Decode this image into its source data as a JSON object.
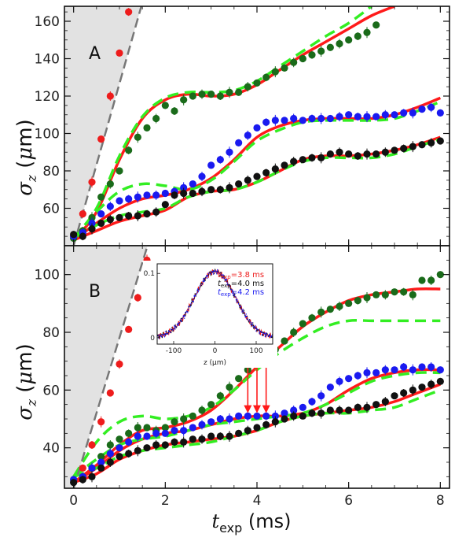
{
  "chart_data": [
    {
      "panel": "A",
      "type": "scatter",
      "ylabel": "σz (μm)",
      "xlim": [
        -0.2,
        8.2
      ],
      "ylim": [
        40,
        168
      ],
      "yticks": [
        60,
        80,
        100,
        120,
        140,
        160
      ],
      "series": [
        {
          "color": "#ee1c1c",
          "x": [
            0.0,
            0.2,
            0.4,
            0.6,
            0.8,
            1.0,
            1.2
          ],
          "y": [
            45,
            57,
            74,
            97,
            120,
            143,
            165
          ]
        },
        {
          "color": "#1a6b1a",
          "x": [
            0.0,
            0.2,
            0.4,
            0.6,
            0.8,
            1.0,
            1.2,
            1.4,
            1.6,
            1.8,
            2.0,
            2.2,
            2.4,
            2.6,
            2.8,
            3.0,
            3.2,
            3.4,
            3.6,
            3.8,
            4.0,
            4.2,
            4.4,
            4.6,
            4.8,
            5.0,
            5.2,
            5.4,
            5.6,
            5.8,
            6.0,
            6.2,
            6.4,
            6.6
          ],
          "y": [
            44,
            48,
            55,
            66,
            73,
            80,
            91,
            98,
            103,
            108,
            115,
            112,
            118,
            120,
            121,
            121,
            120,
            122,
            122,
            125,
            127,
            130,
            133,
            135,
            138,
            140,
            142,
            144,
            146,
            148,
            150,
            152,
            154,
            158
          ]
        },
        {
          "color": "#1a1af0",
          "x": [
            0.0,
            0.2,
            0.4,
            0.6,
            0.8,
            1.0,
            1.2,
            1.4,
            1.6,
            1.8,
            2.0,
            2.2,
            2.4,
            2.6,
            2.8,
            3.0,
            3.2,
            3.4,
            3.6,
            3.8,
            4.0,
            4.2,
            4.4,
            4.6,
            4.8,
            5.0,
            5.2,
            5.4,
            5.6,
            5.8,
            6.0,
            6.2,
            6.4,
            6.6,
            6.8,
            7.0,
            7.2,
            7.4,
            7.6,
            7.8,
            8.0
          ],
          "y": [
            45,
            47,
            52,
            57,
            61,
            64,
            65,
            66,
            67,
            67,
            68,
            69,
            71,
            73,
            77,
            83,
            86,
            90,
            95,
            99,
            103,
            106,
            107,
            107,
            108,
            107,
            108,
            108,
            108,
            109,
            110,
            109,
            109,
            109,
            110,
            110,
            111,
            111,
            113,
            114,
            111
          ]
        },
        {
          "color": "#111111",
          "x": [
            0.0,
            0.2,
            0.4,
            0.6,
            0.8,
            1.0,
            1.2,
            1.4,
            1.6,
            1.8,
            2.0,
            2.2,
            2.4,
            2.6,
            2.8,
            3.0,
            3.2,
            3.4,
            3.6,
            3.8,
            4.0,
            4.2,
            4.4,
            4.6,
            4.8,
            5.0,
            5.2,
            5.4,
            5.6,
            5.8,
            6.0,
            6.2,
            6.4,
            6.6,
            6.8,
            7.0,
            7.2,
            7.4,
            7.6,
            7.8,
            8.0
          ],
          "y": [
            46,
            45,
            49,
            52,
            54,
            55,
            56,
            56,
            57,
            58,
            62,
            67,
            68,
            68,
            69,
            70,
            70,
            71,
            73,
            75,
            77,
            79,
            81,
            83,
            85,
            86,
            87,
            87,
            89,
            90,
            89,
            88,
            89,
            89,
            90,
            91,
            92,
            93,
            94,
            95,
            96
          ]
        }
      ],
      "fits": [
        {
          "color": "#ff1a1a",
          "style": "solid",
          "x": [
            0.0,
            0.5,
            1.0,
            1.5,
            2.0,
            2.5,
            3.0,
            3.5,
            4.0,
            4.5,
            5.0,
            5.5,
            6.0,
            6.5,
            7.0
          ],
          "y": [
            43,
            58,
            86,
            108,
            118,
            121,
            120,
            121,
            126,
            134,
            142,
            149,
            156,
            163,
            168
          ]
        },
        {
          "color": "#33ee22",
          "style": "dashed",
          "x": [
            0.0,
            0.5,
            1.0,
            1.5,
            2.0,
            2.5,
            3.0,
            3.5,
            4.0,
            4.5,
            5.0,
            5.5,
            6.0,
            6.5
          ],
          "y": [
            44,
            60,
            88,
            109,
            119,
            122,
            122,
            123,
            128,
            136,
            144,
            152,
            159,
            168
          ]
        },
        {
          "color": "#ff1a1a",
          "style": "solid",
          "x": [
            0.0,
            0.5,
            1.0,
            1.5,
            2.0,
            2.5,
            3.0,
            3.5,
            4.0,
            4.5,
            5.0,
            5.5,
            6.0,
            6.5,
            7.0,
            7.5,
            8.0
          ],
          "y": [
            43,
            52,
            60,
            65,
            67,
            70,
            76,
            86,
            98,
            104,
            107,
            108,
            108,
            108,
            110,
            114,
            119
          ]
        },
        {
          "color": "#33ee22",
          "style": "dashed",
          "x": [
            0.0,
            0.5,
            1.0,
            1.5,
            2.0,
            2.5,
            3.0,
            3.5,
            4.0,
            4.5,
            5.0,
            5.5,
            6.0,
            6.5,
            7.0,
            7.5,
            8.0
          ],
          "y": [
            44,
            58,
            69,
            73,
            72,
            70,
            75,
            85,
            96,
            102,
            106,
            107,
            107,
            107,
            108,
            112,
            117
          ]
        },
        {
          "color": "#ff1a1a",
          "style": "solid",
          "x": [
            0.0,
            0.5,
            1.0,
            1.5,
            2.0,
            2.5,
            3.0,
            3.5,
            4.0,
            4.5,
            5.0,
            5.5,
            6.0,
            6.5,
            7.0,
            7.5,
            8.0
          ],
          "y": [
            43,
            48,
            53,
            56,
            59,
            66,
            69,
            70,
            74,
            80,
            86,
            88,
            88,
            89,
            91,
            94,
            98
          ]
        },
        {
          "color": "#33ee22",
          "style": "dashed",
          "x": [
            0.0,
            0.5,
            1.0,
            1.5,
            2.0,
            2.5,
            3.0,
            3.5,
            4.0,
            4.5,
            5.0,
            5.5,
            6.0,
            6.5,
            7.0,
            7.5,
            8.0
          ],
          "y": [
            44,
            51,
            56,
            58,
            60,
            66,
            69,
            70,
            74,
            80,
            85,
            87,
            87,
            87,
            89,
            93,
            97
          ]
        },
        {
          "color": "#777777",
          "style": "dashed",
          "x": [
            0.0,
            1.5
          ],
          "y": [
            40,
            170
          ]
        }
      ]
    },
    {
      "panel": "B",
      "type": "scatter",
      "xlabel_main": "t",
      "xlabel_sub": "exp",
      "xlabel_unit": " (ms)",
      "ylabel": "σz (μm)",
      "xlim": [
        -0.2,
        8.2
      ],
      "ylim": [
        26,
        110
      ],
      "xticks": [
        0,
        2,
        4,
        6,
        8
      ],
      "yticks": [
        40,
        60,
        80,
        100
      ],
      "series": [
        {
          "color": "#ee1c1c",
          "x": [
            0.2,
            0.4,
            0.6,
            0.8,
            1.0,
            1.2,
            1.4,
            1.6
          ],
          "y": [
            33,
            41,
            49,
            59,
            69,
            81,
            92,
            105
          ]
        },
        {
          "color": "#1a6b1a",
          "x": [
            0.0,
            0.2,
            0.4,
            0.6,
            0.8,
            1.0,
            1.2,
            1.4,
            1.6,
            1.8,
            2.0,
            2.2,
            2.4,
            2.6,
            2.8,
            3.0,
            3.2,
            3.4,
            3.6,
            3.8,
            4.0,
            4.2,
            4.4,
            4.6,
            4.8,
            5.0,
            5.2,
            5.4,
            5.6,
            5.8,
            6.0,
            6.2,
            6.4,
            6.6,
            6.8,
            7.0,
            7.2,
            7.4,
            7.6,
            7.8,
            8.0
          ],
          "y": [
            29,
            30,
            33,
            37,
            41,
            43,
            45,
            47,
            47,
            46,
            47,
            49,
            50,
            51,
            53,
            55,
            58,
            61,
            64,
            67,
            70,
            72,
            74,
            77,
            80,
            83,
            85,
            87,
            88,
            89,
            90,
            91,
            92,
            93,
            93,
            94,
            94,
            93,
            98,
            98,
            100
          ]
        },
        {
          "color": "#1a1af0",
          "x": [
            0.0,
            0.2,
            0.4,
            0.6,
            0.8,
            1.0,
            1.2,
            1.4,
            1.6,
            1.8,
            2.0,
            2.2,
            2.4,
            2.6,
            2.8,
            3.0,
            3.2,
            3.4,
            3.6,
            3.8,
            4.0,
            4.2,
            4.4,
            4.6,
            4.8,
            5.0,
            5.2,
            5.4,
            5.6,
            5.8,
            6.0,
            6.2,
            6.4,
            6.6,
            6.8,
            7.0,
            7.2,
            7.4,
            7.6,
            7.8,
            8.0
          ],
          "y": [
            29,
            30,
            33,
            35,
            38,
            40,
            42,
            44,
            44,
            45,
            45,
            46,
            46,
            47,
            48,
            49,
            50,
            50,
            51,
            51,
            51,
            51,
            51,
            52,
            53,
            54,
            56,
            58,
            61,
            63,
            64,
            65,
            66,
            66,
            67,
            67,
            68,
            67,
            68,
            68,
            67
          ]
        },
        {
          "color": "#111111",
          "x": [
            0.0,
            0.2,
            0.4,
            0.6,
            0.8,
            1.0,
            1.2,
            1.4,
            1.6,
            1.8,
            2.0,
            2.2,
            2.4,
            2.6,
            2.8,
            3.0,
            3.2,
            3.4,
            3.6,
            3.8,
            4.0,
            4.2,
            4.4,
            4.6,
            4.8,
            5.0,
            5.2,
            5.4,
            5.6,
            5.8,
            6.0,
            6.2,
            6.4,
            6.6,
            6.8,
            7.0,
            7.2,
            7.4,
            7.6,
            7.8,
            8.0
          ],
          "y": [
            28,
            29,
            30,
            33,
            35,
            37,
            38,
            39,
            40,
            41,
            41,
            42,
            42,
            43,
            43,
            44,
            44,
            44,
            45,
            46,
            47,
            48,
            49,
            50,
            51,
            51,
            52,
            52,
            53,
            53,
            53,
            54,
            54,
            55,
            56,
            58,
            59,
            60,
            61,
            62,
            63
          ]
        }
      ],
      "fits": [
        {
          "color": "#ff1a1a",
          "style": "solid",
          "x": [
            0.0,
            0.5,
            1.0,
            1.5,
            2.0,
            2.5,
            3.0,
            3.5,
            4.0,
            4.5,
            5.0,
            5.5,
            6.0,
            6.5,
            7.0,
            7.5,
            8.0
          ],
          "y": [
            28,
            34,
            41,
            46,
            47,
            49,
            53,
            60,
            68,
            75,
            82,
            87,
            91,
            93,
            94,
            95,
            95
          ]
        },
        {
          "color": "#33ee22",
          "style": "dashed",
          "x": [
            0.0,
            0.5,
            1.0,
            1.5,
            2.0,
            2.5,
            3.0,
            3.5,
            4.0,
            4.5,
            5.0,
            5.5,
            6.0,
            6.5,
            7.0,
            7.5,
            8.0
          ],
          "y": [
            30,
            42,
            49,
            51,
            50,
            51,
            54,
            60,
            67,
            73,
            78,
            82,
            84,
            84,
            84,
            84,
            84
          ]
        },
        {
          "color": "#ff1a1a",
          "style": "solid",
          "x": [
            0.0,
            0.5,
            1.0,
            1.5,
            2.0,
            2.5,
            3.0,
            3.5,
            4.0,
            4.5,
            5.0,
            5.5,
            6.0,
            6.5,
            7.0,
            7.5,
            8.0
          ],
          "y": [
            28,
            33,
            39,
            43,
            45,
            46,
            48,
            50,
            51,
            51,
            52,
            55,
            60,
            64,
            66,
            67,
            67
          ]
        },
        {
          "color": "#33ee22",
          "style": "dashed",
          "x": [
            0.0,
            0.5,
            1.0,
            1.5,
            2.0,
            2.5,
            3.0,
            3.5,
            4.0,
            4.5,
            5.0,
            5.5,
            6.0,
            6.5,
            7.0,
            7.5,
            8.0
          ],
          "y": [
            30,
            36,
            41,
            43,
            44,
            46,
            48,
            49,
            50,
            51,
            52,
            55,
            59,
            63,
            65,
            66,
            66
          ]
        },
        {
          "color": "#ff1a1a",
          "style": "solid",
          "x": [
            0.0,
            0.5,
            1.0,
            1.5,
            2.0,
            2.5,
            3.0,
            3.5,
            4.0,
            4.5,
            5.0,
            5.5,
            6.0,
            6.5,
            7.0,
            7.5,
            8.0
          ],
          "y": [
            28,
            31,
            36,
            39,
            41,
            42,
            43,
            44,
            46,
            49,
            51,
            52,
            53,
            54,
            56,
            59,
            62
          ]
        },
        {
          "color": "#33ee22",
          "style": "dashed",
          "x": [
            0.0,
            0.5,
            1.0,
            1.5,
            2.0,
            2.5,
            3.0,
            3.5,
            4.0,
            4.5,
            5.0,
            5.5,
            6.0,
            6.5,
            7.0,
            7.5,
            8.0
          ],
          "y": [
            30,
            33,
            37,
            39,
            40,
            41,
            42,
            44,
            46,
            49,
            51,
            52,
            52,
            53,
            54,
            57,
            60
          ]
        },
        {
          "color": "#777777",
          "style": "dashed",
          "x": [
            0.0,
            1.65
          ],
          "y": [
            26,
            112
          ]
        }
      ],
      "arrows_at_x": [
        3.8,
        4.0,
        4.2
      ],
      "inset": {
        "type": "line",
        "xlabel": "z (μm)",
        "xticks": [
          -100,
          0,
          100
        ],
        "yticks": [
          0,
          0.1
        ],
        "xlim": [
          -140,
          140
        ],
        "ylim": [
          -0.01,
          0.115
        ],
        "legend": [
          {
            "text_main": "t",
            "text_sub": "exp",
            "text_rest": "=3.8 ms",
            "color": "#ee1c1c"
          },
          {
            "text_main": "t",
            "text_sub": "exp",
            "text_rest": "=4.0 ms",
            "color": "#111111"
          },
          {
            "text_main": "t",
            "text_sub": "exp",
            "text_rest": "=4.2 ms",
            "color": "#1a1af0"
          }
        ],
        "gaussian": {
          "amplitude": 0.103,
          "center": 0,
          "sigma": 50
        }
      }
    }
  ],
  "panel_labels": {
    "a": "A",
    "b": "B"
  }
}
